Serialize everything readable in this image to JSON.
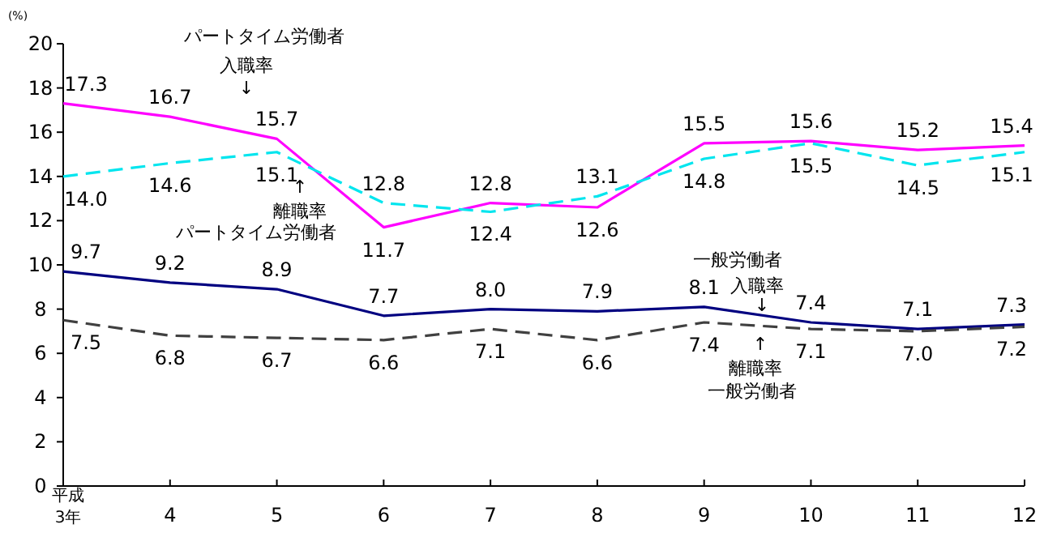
{
  "chart_data": {
    "type": "line",
    "ylabel": "(%)",
    "categories": [
      "平成\n3年",
      "4",
      "5",
      "6",
      "7",
      "8",
      "9",
      "10",
      "11",
      "12"
    ],
    "ylim": [
      0,
      20
    ],
    "yticks": [
      0,
      2,
      4,
      6,
      8,
      10,
      12,
      14,
      16,
      18,
      20
    ],
    "grid": false,
    "marker": "none",
    "series": [
      {
        "color": "#ff00ff",
        "line_style": "solid",
        "values": [
          17.3,
          16.7,
          15.7,
          11.7,
          12.8,
          12.6,
          15.5,
          15.6,
          15.2,
          15.4
        ],
        "value_labels": [
          "17.3",
          "16.7",
          "15.7",
          "11.7",
          "12.8",
          "12.6",
          "15.5",
          "15.6",
          "15.2",
          "15.4"
        ]
      },
      {
        "color": "#00e5ee",
        "line_style": "dashed",
        "values": [
          14.0,
          14.6,
          15.1,
          12.8,
          12.4,
          13.1,
          14.8,
          15.5,
          14.5,
          15.1
        ],
        "value_labels": [
          "14.0",
          "14.6",
          "15.1",
          "12.8",
          "12.4",
          "13.1",
          "14.8",
          "15.5",
          "14.5",
          "15.1"
        ]
      },
      {
        "color": "#000080",
        "line_style": "solid",
        "values": [
          9.7,
          9.2,
          8.9,
          7.7,
          8.0,
          7.9,
          8.1,
          7.4,
          7.1,
          7.3
        ],
        "value_labels": [
          "9.7",
          "9.2",
          "8.9",
          "7.7",
          "8.0",
          "7.9",
          "8.1",
          "7.4",
          "7.1",
          "7.3"
        ]
      },
      {
        "color": "#404040",
        "line_style": "dashed",
        "values": [
          7.5,
          6.8,
          6.7,
          6.6,
          7.1,
          6.6,
          7.4,
          7.1,
          7.0,
          7.2
        ],
        "value_labels": [
          "7.5",
          "6.8",
          "6.7",
          "6.6",
          "7.1",
          "6.6",
          "7.4",
          "7.1",
          "7.0",
          "7.2"
        ]
      }
    ],
    "annotations": [
      "パートタイム労働者",
      "入職率",
      "↓",
      "↑",
      "離職率",
      "パートタイム労働者",
      "一般労働者",
      "入職率",
      "↓",
      "↑",
      "離職率",
      "一般労働者"
    ]
  }
}
